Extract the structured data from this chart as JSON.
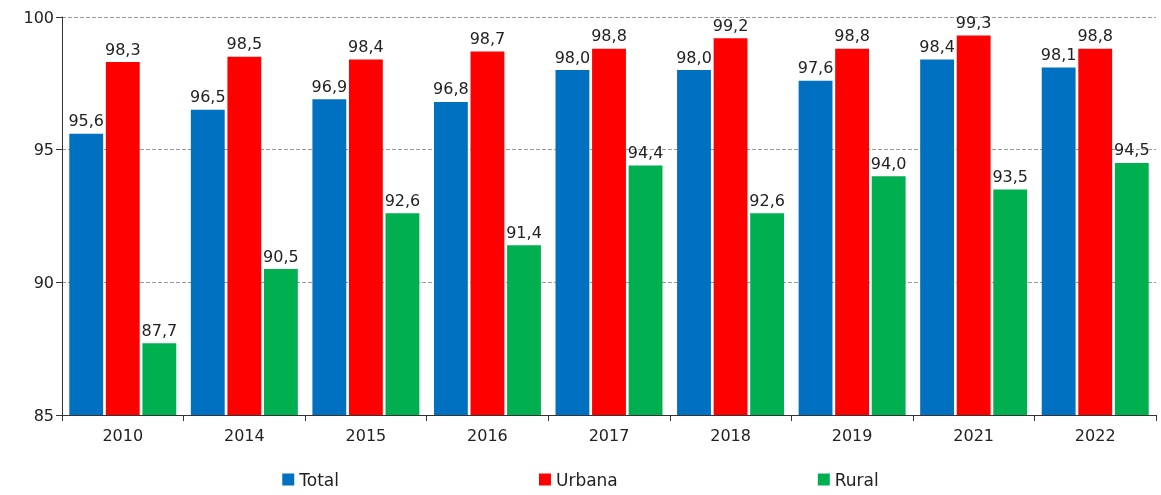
{
  "chart_data": {
    "type": "bar",
    "categories": [
      "2010",
      "2014",
      "2015",
      "2016",
      "2017",
      "2018",
      "2019",
      "2021",
      "2022"
    ],
    "series": [
      {
        "name": "Total",
        "color": "#0070c0",
        "values": [
          95.6,
          96.5,
          96.9,
          96.8,
          98.0,
          98.0,
          97.6,
          98.4,
          98.1
        ],
        "value_labels": [
          "95,6",
          "96,5",
          "96,9",
          "96,8",
          "98,0",
          "98,0",
          "97,6",
          "98,4",
          "98,1"
        ]
      },
      {
        "name": "Urbana",
        "color": "#ff0000",
        "values": [
          98.3,
          98.5,
          98.4,
          98.7,
          98.8,
          99.2,
          98.8,
          99.3,
          98.8
        ],
        "value_labels": [
          "98,3",
          "98,5",
          "98,4",
          "98,7",
          "98,8",
          "99,2",
          "98,8",
          "99,3",
          "98,8"
        ]
      },
      {
        "name": "Rural",
        "color": "#00b050",
        "values": [
          87.7,
          90.5,
          92.6,
          91.4,
          94.4,
          92.6,
          94.0,
          93.5,
          94.5
        ],
        "value_labels": [
          "87,7",
          "90,5",
          "92,6",
          "91,4",
          "94,4",
          "92,6",
          "94,0",
          "93,5",
          "94,5"
        ]
      }
    ],
    "ylim": [
      85,
      100
    ],
    "yticks": [
      85,
      90,
      95,
      100
    ],
    "grid": "y",
    "line_style": "dashed",
    "legend": "bottom"
  }
}
